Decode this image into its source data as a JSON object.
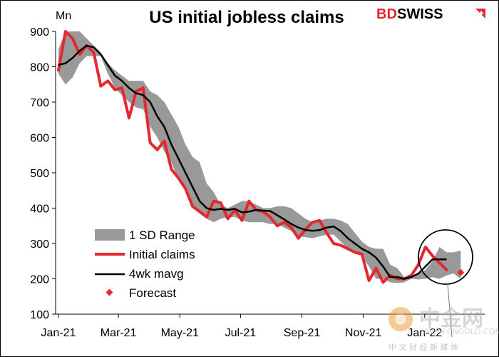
{
  "chart_data": {
    "type": "line",
    "title": "US initial jobless claims",
    "ylabel": "Mn",
    "ylim": [
      100,
      900
    ],
    "yticks": [
      100,
      200,
      300,
      400,
      500,
      600,
      700,
      800,
      900
    ],
    "xlim": [
      0,
      60
    ],
    "xticks": [
      {
        "label": "Jan-21",
        "x": 0
      },
      {
        "label": "Mar-21",
        "x": 8.5
      },
      {
        "label": "May-21",
        "x": 17.2
      },
      {
        "label": "Jul-21",
        "x": 25.8
      },
      {
        "label": "Sep-21",
        "x": 34.5
      },
      {
        "label": "Nov-21",
        "x": 43.2
      },
      {
        "label": "Jan-22",
        "x": 51.9
      }
    ],
    "series": [
      {
        "name": "1 SD Range",
        "type": "band",
        "color": "#999999",
        "upper": [
          850,
          900,
          900,
          900,
          880,
          860,
          840,
          810,
          790,
          775,
          760,
          760,
          760,
          730,
          720,
          700,
          665,
          630,
          580,
          545,
          530,
          470,
          445,
          410,
          400,
          410,
          420,
          420,
          410,
          400,
          400,
          405,
          405,
          400,
          385,
          370,
          360,
          365,
          370,
          370,
          365,
          355,
          330,
          305,
          290,
          285,
          285,
          240,
          230,
          205,
          205,
          215,
          225,
          250,
          290,
          275,
          275,
          280
        ],
        "lower": [
          780,
          750,
          770,
          810,
          830,
          830,
          830,
          780,
          740,
          720,
          700,
          685,
          680,
          630,
          600,
          560,
          530,
          480,
          450,
          410,
          390,
          370,
          360,
          370,
          375,
          375,
          365,
          360,
          360,
          360,
          355,
          355,
          345,
          335,
          320,
          318,
          315,
          320,
          325,
          325,
          305,
          285,
          275,
          265,
          235,
          200,
          200,
          190,
          188,
          190,
          200,
          198,
          200,
          205,
          200,
          210,
          215,
          200
        ]
      },
      {
        "name": "Initial claims",
        "type": "line",
        "color": "#e5282d",
        "values": [
          790,
          900,
          880,
          835,
          860,
          840,
          745,
          760,
          735,
          740,
          655,
          730,
          740,
          585,
          565,
          590,
          510,
          485,
          455,
          405,
          390,
          375,
          420,
          415,
          370,
          395,
          365,
          420,
          395,
          390,
          375,
          350,
          360,
          345,
          315,
          340,
          360,
          365,
          330,
          300,
          295,
          285,
          275,
          270,
          195,
          230,
          190,
          210,
          200,
          200,
          210,
          240,
          290,
          265,
          245,
          225
        ]
      },
      {
        "name": "4wk mavg",
        "type": "line",
        "color": "#000000",
        "values": [
          805,
          810,
          825,
          845,
          860,
          855,
          835,
          805,
          775,
          760,
          740,
          725,
          720,
          700,
          660,
          630,
          580,
          540,
          500,
          460,
          420,
          400,
          395,
          398,
          395,
          398,
          388,
          390,
          395,
          393,
          392,
          380,
          368,
          355,
          345,
          338,
          336,
          338,
          345,
          348,
          335,
          315,
          300,
          285,
          275,
          260,
          235,
          205,
          205,
          200,
          205,
          215,
          235,
          255,
          255,
          255
        ]
      },
      {
        "name": "Forecast",
        "type": "scatter",
        "color": "#e5282d",
        "points": [
          {
            "x": 57,
            "y": 218
          }
        ]
      }
    ],
    "legend": {
      "position": "bottom-left",
      "entries": [
        "1 SD Range",
        "Initial claims",
        "4wk mavg",
        "Forecast"
      ]
    },
    "annotation": "circle around latest readings with pointer to forecast"
  },
  "brand": {
    "bd": "BD",
    "swiss": "SWISS",
    "accent": "#e5282d"
  },
  "watermark": {
    "big": "中金网",
    "sub": "中 文 财 经 新 媒 体",
    "url": "WWW.CNGOLD.COM.CN"
  },
  "colors": {
    "band": "#999999",
    "claims": "#e5282d",
    "mavg": "#000000"
  }
}
